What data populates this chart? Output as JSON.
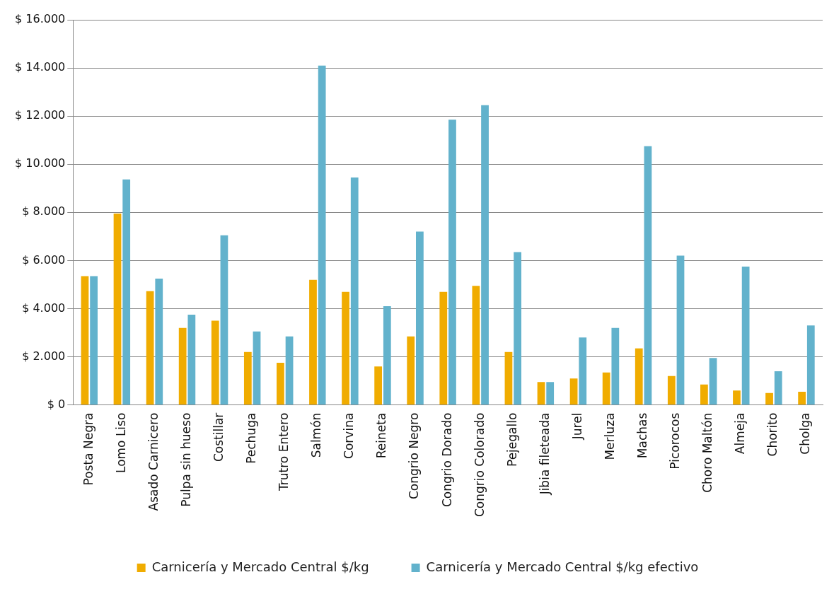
{
  "chart_data": {
    "type": "bar",
    "categories": [
      "Posta Negra",
      "Lomo Liso",
      "Asado Carnicero",
      "Pulpa sin hueso",
      "Costillar",
      "Pechuga",
      "Trutro Entero",
      "Salmón",
      "Corvina",
      "Reineta",
      "Congrio Negro",
      "Congrio Dorado",
      "Congrio Colorado",
      "Pejegallo",
      "Jibia fileteada",
      "Jurel",
      "Merluza",
      "Machas",
      "Picorocos",
      "Choro Maltón",
      "Almeja",
      "Chorito",
      "Cholga"
    ],
    "series": [
      {
        "name": "Carnicería y Mercado Central $/kg",
        "color": "#f0ac00",
        "values": [
          5350,
          7950,
          4730,
          3200,
          3500,
          2200,
          1750,
          5200,
          4700,
          1600,
          2850,
          4700,
          4950,
          2200,
          950,
          1100,
          1350,
          2350,
          1200,
          850,
          600,
          500,
          550
        ]
      },
      {
        "name": "Carnicería y Mercado Central $/kg efectivo",
        "color": "#62b2cc",
        "values": [
          5350,
          9370,
          5250,
          3750,
          7050,
          3050,
          2850,
          14100,
          9450,
          4100,
          7200,
          11850,
          12450,
          6350,
          950,
          2800,
          3200,
          10750,
          6200,
          1950,
          5750,
          1400,
          3300
        ]
      }
    ],
    "ylim": [
      0,
      16000
    ],
    "yticks": [
      {
        "value": 0,
        "label": "$ 0"
      },
      {
        "value": 2000,
        "label": "$ 2.000"
      },
      {
        "value": 4000,
        "label": "$ 4.000"
      },
      {
        "value": 6000,
        "label": "$ 6.000"
      },
      {
        "value": 8000,
        "label": "$ 8.000"
      },
      {
        "value": 10000,
        "label": "$ 10.000"
      },
      {
        "value": 12000,
        "label": "$ 12.000"
      },
      {
        "value": 14000,
        "label": "$ 14.000"
      },
      {
        "value": 16000,
        "label": "$ 16.000"
      }
    ],
    "grid": "y",
    "legend": "bottom"
  }
}
